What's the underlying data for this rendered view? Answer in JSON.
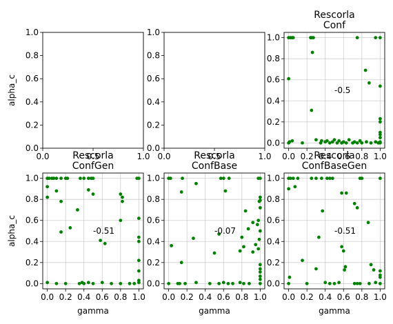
{
  "figure": {
    "marker_color": "#008000",
    "grid_color": "#b0b0b0",
    "axis_color": "#000000",
    "background": "#ffffff"
  },
  "chart_data": [
    {
      "type": "scatter",
      "title": "",
      "xlabel": "",
      "ylabel": "alpha_c",
      "xlim": [
        0,
        1
      ],
      "ylim": [
        0,
        1
      ],
      "xticks": [
        "0.0",
        "0.5",
        "1.0"
      ],
      "yticks": [
        "0.0",
        "0.2",
        "0.4",
        "0.6",
        "0.8",
        "1.0"
      ],
      "grid": false,
      "annotation": null,
      "points": []
    },
    {
      "type": "scatter",
      "title": "",
      "xlabel": "",
      "ylabel": "",
      "xlim": [
        0,
        1
      ],
      "ylim": [
        0,
        1
      ],
      "xticks": [
        "0.0",
        "0.5",
        "1.0"
      ],
      "yticks": [
        "0.0",
        "0.2",
        "0.4",
        "0.6",
        "0.8",
        "1.0"
      ],
      "grid": false,
      "annotation": null,
      "points": []
    },
    {
      "type": "scatter",
      "title": "Rescorla\nConf",
      "xlabel": "",
      "ylabel": "",
      "xlim": [
        -0.05,
        1.05
      ],
      "ylim": [
        -0.05,
        1.05
      ],
      "xticks": [
        "0.0",
        "0.2",
        "0.4",
        "0.6",
        "0.8",
        "1.0"
      ],
      "yticks": [
        "0.0",
        "0.2",
        "0.4",
        "0.6",
        "0.8",
        "1.0"
      ],
      "grid": true,
      "annotation": {
        "text": "-0.5",
        "x": 0.5,
        "y": 0.5
      },
      "points": [
        [
          0.0,
          1.0
        ],
        [
          0.02,
          1.0
        ],
        [
          0.04,
          1.0
        ],
        [
          0.05,
          1.0
        ],
        [
          0.24,
          1.0
        ],
        [
          0.25,
          1.0
        ],
        [
          0.27,
          1.0
        ],
        [
          0.75,
          1.0
        ],
        [
          0.95,
          1.0
        ],
        [
          1.0,
          1.0
        ],
        [
          0.0,
          0.61
        ],
        [
          0.26,
          0.86
        ],
        [
          0.25,
          0.31
        ],
        [
          0.84,
          0.69
        ],
        [
          0.88,
          0.57
        ],
        [
          1.0,
          0.54
        ],
        [
          1.0,
          0.23
        ],
        [
          1.0,
          0.2
        ],
        [
          1.0,
          0.1
        ],
        [
          1.0,
          0.08
        ],
        [
          1.0,
          0.05
        ],
        [
          0.0,
          0.0
        ],
        [
          0.01,
          0.01
        ],
        [
          0.04,
          0.02
        ],
        [
          0.15,
          0.0
        ],
        [
          0.3,
          0.03
        ],
        [
          0.35,
          0.0
        ],
        [
          0.36,
          0.02
        ],
        [
          0.4,
          0.01
        ],
        [
          0.42,
          0.02
        ],
        [
          0.45,
          0.0
        ],
        [
          0.48,
          0.01
        ],
        [
          0.5,
          0.03
        ],
        [
          0.53,
          0.0
        ],
        [
          0.55,
          0.02
        ],
        [
          0.58,
          0.0
        ],
        [
          0.6,
          0.01
        ],
        [
          0.63,
          0.0
        ],
        [
          0.66,
          0.03
        ],
        [
          0.7,
          0.0
        ],
        [
          0.72,
          0.01
        ],
        [
          0.75,
          0.0
        ],
        [
          0.78,
          0.02
        ],
        [
          0.8,
          0.0
        ],
        [
          0.85,
          0.01
        ],
        [
          0.9,
          0.0
        ],
        [
          0.95,
          0.01
        ],
        [
          0.98,
          0.0
        ],
        [
          1.0,
          0.0
        ],
        [
          1.0,
          0.01
        ]
      ]
    },
    {
      "type": "scatter",
      "title": "Rescorla\nConfGen",
      "xlabel": "gamma",
      "ylabel": "alpha_c",
      "xlim": [
        -0.05,
        1.05
      ],
      "ylim": [
        -0.05,
        1.05
      ],
      "xticks": [
        "0.0",
        "0.2",
        "0.4",
        "0.6",
        "0.8",
        "1.0"
      ],
      "yticks": [
        "0.0",
        "0.2",
        "0.4",
        "0.6",
        "0.8",
        "1.0"
      ],
      "grid": true,
      "annotation": {
        "text": "-0.51",
        "x": 0.5,
        "y": 0.5
      },
      "points": [
        [
          0.0,
          1.0
        ],
        [
          0.02,
          1.0
        ],
        [
          0.05,
          1.0
        ],
        [
          0.07,
          1.0
        ],
        [
          0.1,
          1.0
        ],
        [
          0.15,
          1.0
        ],
        [
          0.2,
          1.0
        ],
        [
          0.22,
          1.0
        ],
        [
          0.36,
          1.0
        ],
        [
          0.4,
          1.0
        ],
        [
          0.45,
          1.0
        ],
        [
          0.48,
          1.0
        ],
        [
          0.5,
          1.0
        ],
        [
          0.98,
          1.0
        ],
        [
          1.0,
          1.0
        ],
        [
          0.0,
          0.92
        ],
        [
          0.0,
          0.82
        ],
        [
          0.1,
          0.88
        ],
        [
          0.15,
          0.78
        ],
        [
          0.33,
          0.7
        ],
        [
          0.45,
          0.89
        ],
        [
          0.5,
          0.85
        ],
        [
          0.8,
          0.85
        ],
        [
          0.82,
          0.82
        ],
        [
          0.82,
          0.78
        ],
        [
          0.8,
          0.6
        ],
        [
          0.15,
          0.49
        ],
        [
          0.25,
          0.53
        ],
        [
          0.58,
          0.41
        ],
        [
          0.63,
          0.38
        ],
        [
          1.0,
          0.62
        ],
        [
          1.0,
          0.44
        ],
        [
          1.0,
          0.4
        ],
        [
          1.0,
          0.22
        ],
        [
          1.0,
          0.12
        ],
        [
          0.0,
          0.01
        ],
        [
          0.1,
          0.0
        ],
        [
          0.2,
          0.0
        ],
        [
          0.35,
          0.0
        ],
        [
          0.38,
          0.01
        ],
        [
          0.4,
          0.0
        ],
        [
          0.45,
          0.01
        ],
        [
          0.5,
          0.0
        ],
        [
          0.6,
          0.01
        ],
        [
          0.7,
          0.0
        ],
        [
          0.8,
          0.0
        ],
        [
          0.9,
          0.0
        ],
        [
          0.95,
          0.0
        ],
        [
          1.0,
          0.03
        ],
        [
          1.0,
          0.01
        ]
      ]
    },
    {
      "type": "scatter",
      "title": "Rescorla\nConfBase",
      "xlabel": "gamma",
      "ylabel": "",
      "xlim": [
        -0.05,
        1.05
      ],
      "ylim": [
        -0.05,
        1.05
      ],
      "xticks": [
        "0.0",
        "0.2",
        "0.4",
        "0.6",
        "0.8",
        "1.0"
      ],
      "yticks": [
        "0.0",
        "0.2",
        "0.4",
        "0.6",
        "0.8",
        "1.0"
      ],
      "grid": true,
      "annotation": {
        "text": "-0.07",
        "x": 0.5,
        "y": 0.5
      },
      "points": [
        [
          0.0,
          1.0
        ],
        [
          0.02,
          1.0
        ],
        [
          0.15,
          1.0
        ],
        [
          0.57,
          1.0
        ],
        [
          0.6,
          1.0
        ],
        [
          0.66,
          1.0
        ],
        [
          0.98,
          1.0
        ],
        [
          1.0,
          1.0
        ],
        [
          0.14,
          0.87
        ],
        [
          0.3,
          0.95
        ],
        [
          0.62,
          0.88
        ],
        [
          1.0,
          0.82
        ],
        [
          1.0,
          0.79
        ],
        [
          0.99,
          0.78
        ],
        [
          1.0,
          0.72
        ],
        [
          0.84,
          0.69
        ],
        [
          0.98,
          0.6
        ],
        [
          0.92,
          0.58
        ],
        [
          0.97,
          0.56
        ],
        [
          0.87,
          0.52
        ],
        [
          1.0,
          0.5
        ],
        [
          0.55,
          0.47
        ],
        [
          0.8,
          0.44
        ],
        [
          0.27,
          0.43
        ],
        [
          0.99,
          0.42
        ],
        [
          0.95,
          0.37
        ],
        [
          0.03,
          0.36
        ],
        [
          0.82,
          0.35
        ],
        [
          0.98,
          0.33
        ],
        [
          0.78,
          0.31
        ],
        [
          0.92,
          0.3
        ],
        [
          0.5,
          0.29
        ],
        [
          0.14,
          0.2
        ],
        [
          1.0,
          0.18
        ],
        [
          1.0,
          0.14
        ],
        [
          1.0,
          0.11
        ],
        [
          1.0,
          0.07
        ],
        [
          1.0,
          0.04
        ],
        [
          0.0,
          0.0
        ],
        [
          0.1,
          0.0
        ],
        [
          0.12,
          0.0
        ],
        [
          0.18,
          0.0
        ],
        [
          0.3,
          0.01
        ],
        [
          0.45,
          0.0
        ],
        [
          0.55,
          0.0
        ],
        [
          0.6,
          0.01
        ],
        [
          0.65,
          0.0
        ],
        [
          0.7,
          0.0
        ],
        [
          0.78,
          0.01
        ],
        [
          0.82,
          0.0
        ],
        [
          0.88,
          0.0
        ],
        [
          1.0,
          0.0
        ]
      ]
    },
    {
      "type": "scatter",
      "title": "Rescorla\nConfBaseGen",
      "xlabel": "gamma",
      "ylabel": "",
      "xlim": [
        -0.05,
        1.05
      ],
      "ylim": [
        -0.05,
        1.05
      ],
      "xticks": [
        "0.0",
        "0.2",
        "0.4",
        "0.6",
        "0.8",
        "1.0"
      ],
      "yticks": [
        "0.0",
        "0.2",
        "0.4",
        "0.6",
        "0.8",
        "1.0"
      ],
      "grid": true,
      "annotation": {
        "text": "-0.51",
        "x": 0.5,
        "y": 0.5
      },
      "points": [
        [
          0.0,
          1.0
        ],
        [
          0.02,
          1.0
        ],
        [
          0.05,
          1.0
        ],
        [
          0.1,
          1.0
        ],
        [
          0.25,
          1.0
        ],
        [
          0.3,
          1.0
        ],
        [
          0.36,
          1.0
        ],
        [
          0.42,
          1.0
        ],
        [
          0.45,
          1.0
        ],
        [
          0.48,
          1.0
        ],
        [
          0.78,
          1.0
        ],
        [
          0.8,
          1.0
        ],
        [
          1.0,
          1.0
        ],
        [
          0.0,
          0.9
        ],
        [
          0.07,
          0.92
        ],
        [
          0.58,
          0.86
        ],
        [
          0.63,
          0.86
        ],
        [
          0.72,
          0.76
        ],
        [
          0.75,
          0.72
        ],
        [
          0.37,
          0.69
        ],
        [
          0.87,
          0.58
        ],
        [
          0.33,
          0.44
        ],
        [
          0.58,
          0.35
        ],
        [
          0.6,
          0.31
        ],
        [
          0.61,
          0.13
        ],
        [
          0.62,
          0.16
        ],
        [
          0.15,
          0.22
        ],
        [
          0.3,
          0.14
        ],
        [
          0.9,
          0.18
        ],
        [
          0.93,
          0.13
        ],
        [
          1.0,
          0.12
        ],
        [
          1.0,
          0.08
        ],
        [
          1.0,
          0.06
        ],
        [
          0.01,
          0.06
        ],
        [
          0.0,
          0.0
        ],
        [
          0.2,
          0.0
        ],
        [
          0.4,
          0.01
        ],
        [
          0.45,
          0.0
        ],
        [
          0.5,
          0.0
        ],
        [
          0.55,
          0.01
        ],
        [
          0.72,
          0.0
        ],
        [
          0.75,
          0.0
        ],
        [
          0.78,
          0.0
        ],
        [
          0.88,
          0.0
        ],
        [
          0.95,
          0.01
        ],
        [
          1.0,
          0.0
        ]
      ]
    }
  ]
}
